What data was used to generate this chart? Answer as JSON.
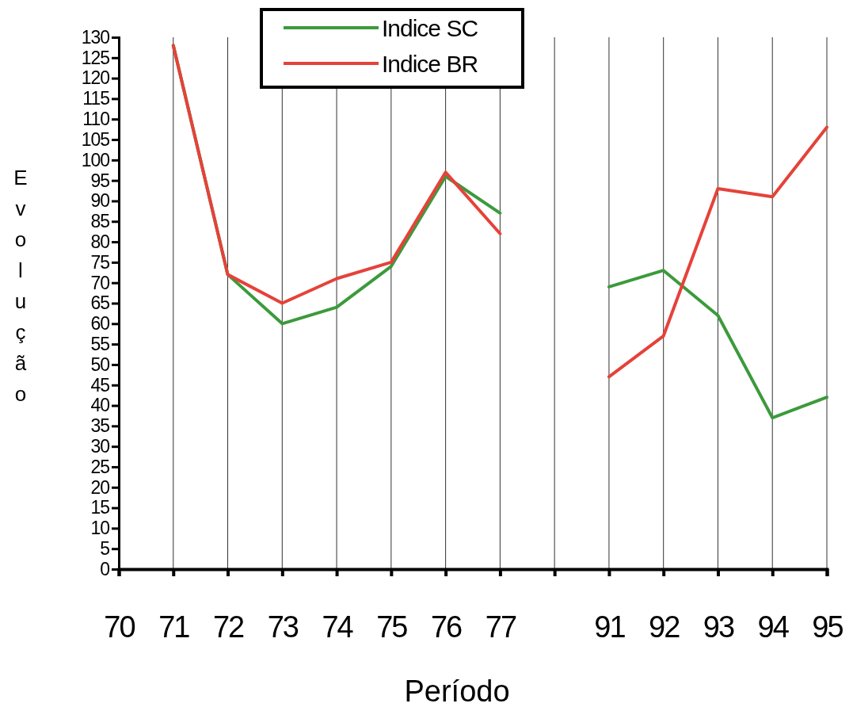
{
  "chart_data": {
    "type": "line",
    "xlabel": "Período",
    "ylabel": "Evolução",
    "categories": [
      "70",
      "71",
      "72",
      "73",
      "74",
      "75",
      "76",
      "77",
      null,
      "91",
      "92",
      "93",
      "94",
      "95"
    ],
    "series": [
      {
        "name": "Indice SC",
        "color": "#3c9a3c",
        "values": [
          null,
          128,
          72,
          60,
          64,
          74,
          96,
          87,
          null,
          69,
          73,
          62,
          37,
          42
        ]
      },
      {
        "name": "Indice BR",
        "color": "#e5423a",
        "values": [
          null,
          128,
          72,
          65,
          71,
          75,
          97,
          82,
          null,
          47,
          57,
          93,
          91,
          108
        ]
      }
    ],
    "ylim": [
      0,
      130
    ],
    "yticks": [
      0,
      5,
      10,
      15,
      20,
      25,
      30,
      35,
      40,
      45,
      50,
      55,
      60,
      65,
      70,
      75,
      80,
      85,
      90,
      95,
      100,
      105,
      110,
      115,
      120,
      125,
      130
    ],
    "grid": "x",
    "legend": "top",
    "marker": "none",
    "line_style": "solid"
  }
}
